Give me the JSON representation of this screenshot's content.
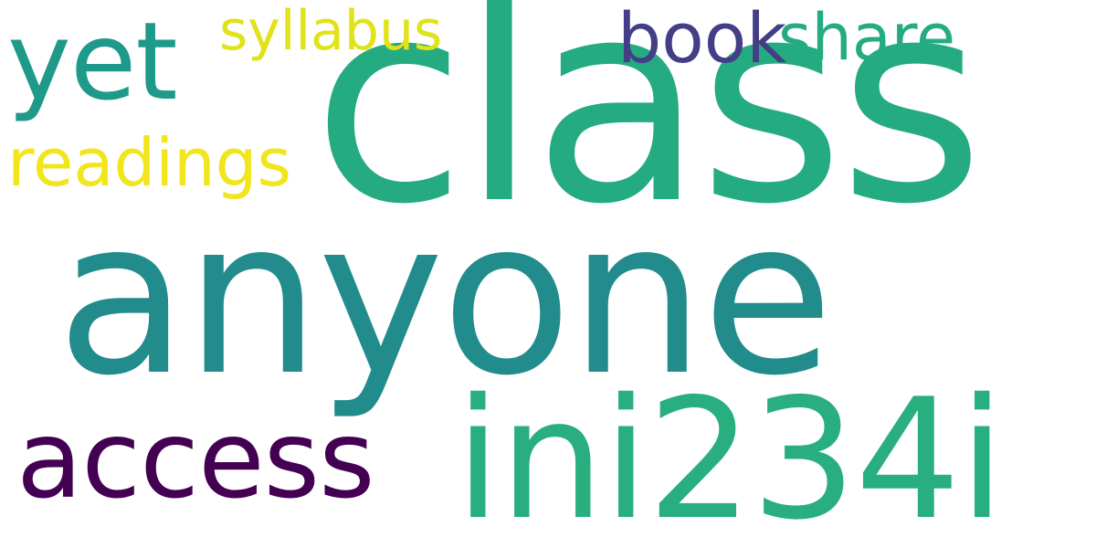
{
  "words": [
    {
      "text": "class",
      "color": "#25ab82"
    },
    {
      "text": "anyone",
      "color": "#228c8d"
    },
    {
      "text": "ini234i",
      "color": "#29af7f"
    },
    {
      "text": "access",
      "color": "#440154"
    },
    {
      "text": "yet",
      "color": "#1f9a8a"
    },
    {
      "text": "readings",
      "color": "#f1e51d"
    },
    {
      "text": "syllabus",
      "color": "#dfe318"
    },
    {
      "text": "book",
      "color": "#433e85"
    },
    {
      "text": "share",
      "color": "#25ab82"
    }
  ]
}
